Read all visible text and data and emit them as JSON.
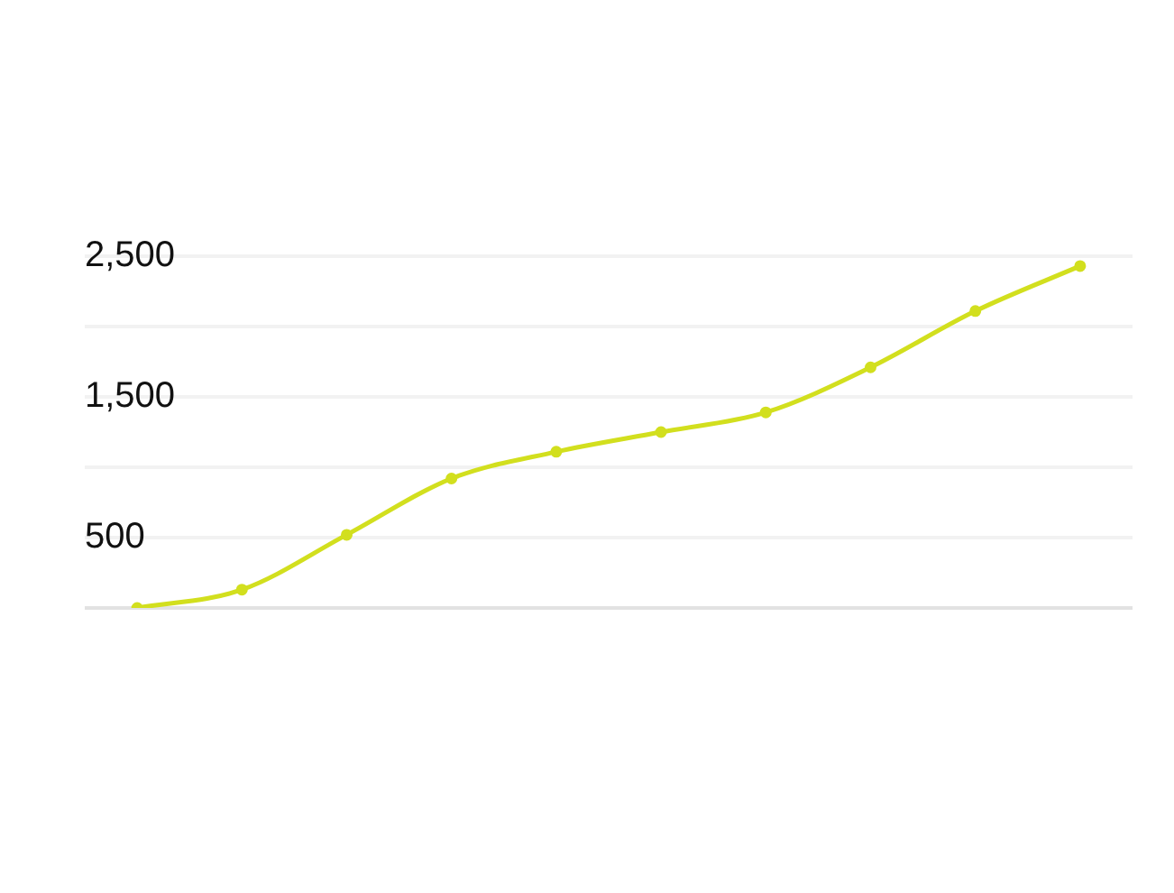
{
  "chart_data": {
    "type": "line",
    "categories": [
      null,
      null,
      null,
      null,
      null,
      null,
      null,
      null,
      null,
      null
    ],
    "series": [
      {
        "color": "#d2df1e",
        "values": [
          0,
          130,
          520,
          920,
          1110,
          1250,
          1390,
          1710,
          2110,
          2430
        ]
      }
    ],
    "ylim": [
      0,
      2500
    ],
    "yticks": [
      {
        "value": 0,
        "label": null
      },
      500,
      {
        "value": 1000,
        "label": null
      },
      {
        "value": 1500,
        "label": "1,500"
      },
      {
        "value": 2000,
        "label": null
      },
      {
        "value": 2500,
        "label": "2,500"
      }
    ],
    "grid": "y",
    "legend": false,
    "marker": "circle",
    "line_style": "solid",
    "tick_labels": "y"
  }
}
